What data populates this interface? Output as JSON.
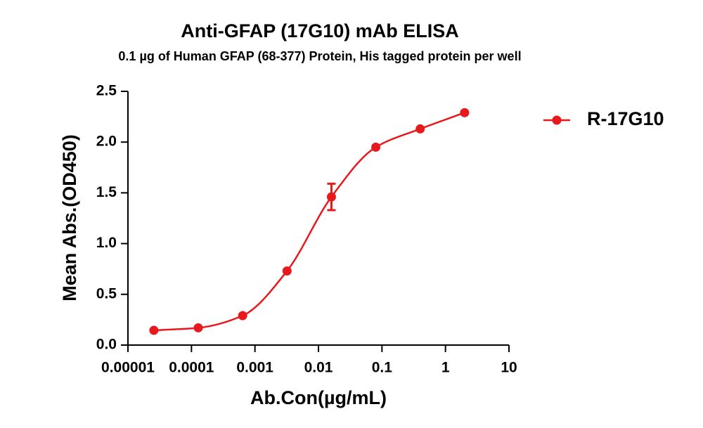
{
  "chart_data": {
    "type": "scatter",
    "title": "Anti-GFAP (17G10) mAb ELISA",
    "subtitle": "0.1  µg of Human GFAP (68-377) Protein, His  tagged protein per well",
    "x_label": "Ab.Con(µg/mL)",
    "y_label": "Mean Abs.(OD450)",
    "x": [
      2.56e-05,
      0.000128,
      0.00064,
      0.0032,
      0.016,
      0.08,
      0.4,
      2
    ],
    "series": [
      {
        "name": "R-17G10",
        "color": "#e8191c",
        "values": [
          0.145,
          0.17,
          0.29,
          0.73,
          1.46,
          1.95,
          2.13,
          2.29
        ],
        "errors": [
          null,
          null,
          null,
          null,
          0.13,
          null,
          null,
          null
        ]
      }
    ],
    "xscale": "log",
    "xlim": [
      1e-05,
      10
    ],
    "xticks": [
      1e-05,
      0.0001,
      0.001,
      0.01,
      0.1,
      1,
      10
    ],
    "ylim": [
      0,
      2.5
    ],
    "yticks": [
      {
        "value": 0,
        "label": "0.0"
      },
      0.5,
      {
        "value": 1,
        "label": "1.0"
      },
      1.5,
      {
        "value": 2,
        "label": "2.0"
      },
      2.5
    ],
    "legend": "right"
  }
}
